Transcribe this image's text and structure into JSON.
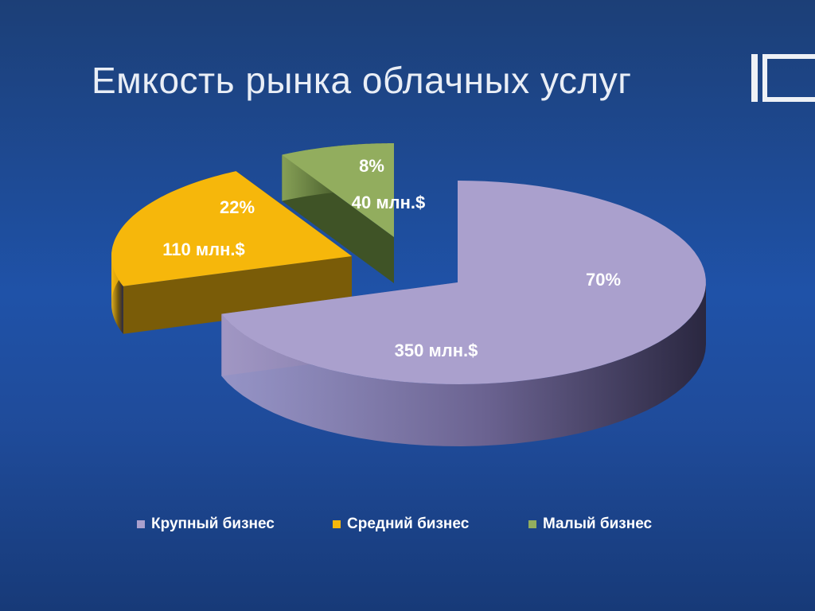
{
  "slide": {
    "title": "Емкость рынка облачных услуг"
  },
  "chart_data": {
    "type": "pie",
    "title": "",
    "series": [
      {
        "name": "Крупный бизнес",
        "value": 350,
        "percent_label": "70%",
        "value_label": "350 млн.$",
        "color": "#aaa0cd",
        "side_color": "#6a6290"
      },
      {
        "name": "Средний бизнес",
        "value": 110,
        "percent_label": "22%",
        "value_label": "110 млн.$",
        "color": "#f6b70b",
        "side_color": "#7a5c08"
      },
      {
        "name": "Малый бизнес",
        "value": 40,
        "percent_label": "8%",
        "value_label": "40 млн.$",
        "color": "#92ad5e",
        "side_color": "#3f5326"
      }
    ],
    "legend_position": "bottom",
    "label_color": "#ffffff"
  }
}
